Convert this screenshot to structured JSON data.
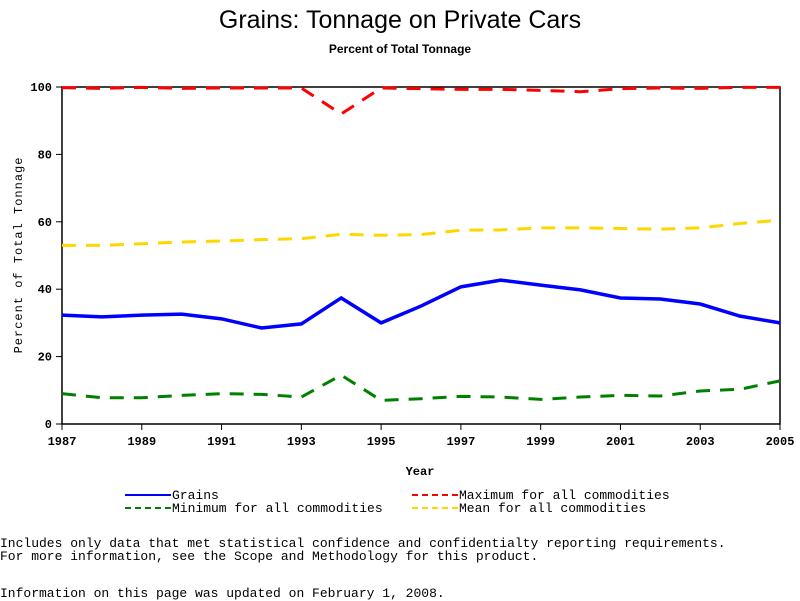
{
  "chart_data": {
    "type": "line",
    "title": "Grains: Tonnage on Private Cars",
    "subtitle": "Percent of Total Tonnage",
    "xlabel": "Year",
    "ylabel": "Percent of Total Tonnage",
    "xlim": [
      1987,
      2005
    ],
    "ylim": [
      0,
      100
    ],
    "xticks": [
      1987,
      1989,
      1991,
      1993,
      1995,
      1997,
      1999,
      2001,
      2003,
      2005
    ],
    "yticks": [
      0,
      20,
      40,
      60,
      80,
      100
    ],
    "grid": false,
    "legend_position": "bottom",
    "x": [
      1987,
      1988,
      1989,
      1990,
      1991,
      1992,
      1993,
      1994,
      1995,
      1996,
      1997,
      1998,
      1999,
      2000,
      2001,
      2002,
      2003,
      2004,
      2005
    ],
    "series": [
      {
        "name": "Grains",
        "color": "#0000ff",
        "style": "solid",
        "values": [
          32.3,
          31.8,
          32.3,
          32.6,
          31.2,
          28.5,
          29.7,
          37.4,
          30.0,
          35.0,
          40.7,
          42.7,
          41.2,
          39.8,
          37.4,
          37.1,
          35.6,
          32.0,
          30.0
        ]
      },
      {
        "name": "Maximum for all commodities",
        "color": "#ff0000",
        "style": "dashed",
        "values": [
          99.8,
          99.6,
          99.9,
          99.6,
          99.7,
          99.7,
          99.7,
          92.0,
          99.7,
          99.5,
          99.3,
          99.3,
          99.0,
          98.6,
          99.5,
          99.7,
          99.6,
          99.9,
          99.9
        ]
      },
      {
        "name": "Minimum for all commodities",
        "color": "#008000",
        "style": "dashed",
        "values": [
          9.0,
          7.8,
          7.8,
          8.5,
          9.0,
          8.8,
          8.0,
          14.5,
          7.0,
          7.5,
          8.2,
          8.0,
          7.3,
          8.0,
          8.5,
          8.3,
          9.8,
          10.3,
          12.8
        ]
      },
      {
        "name": "Mean for all commodities",
        "color": "#ffd700",
        "style": "dashed",
        "values": [
          53.0,
          53.0,
          53.5,
          54.0,
          54.3,
          54.7,
          55.0,
          56.3,
          56.0,
          56.2,
          57.5,
          57.6,
          58.2,
          58.2,
          58.0,
          57.8,
          58.2,
          59.5,
          60.5
        ]
      }
    ]
  },
  "notes": {
    "line1": "Includes only data that met statistical confidence and confidentialty reporting requirements.",
    "line2": "For more information, see the Scope and Methodology for this product.",
    "updated": "Information on this page was updated on February 1, 2008."
  }
}
